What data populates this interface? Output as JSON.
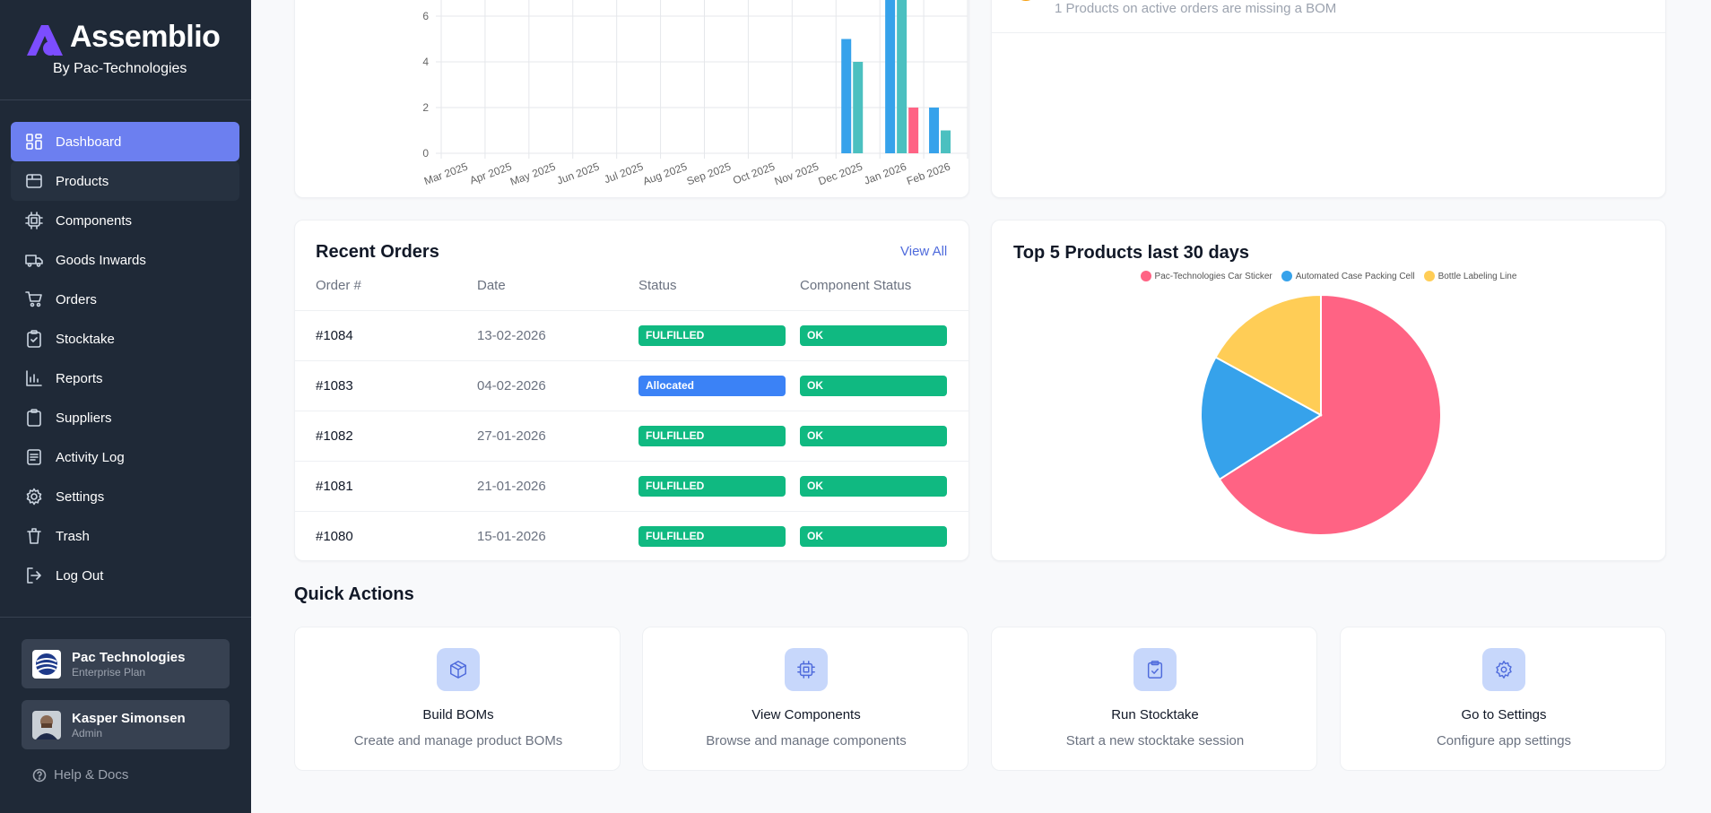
{
  "brand": {
    "name": "Assemblio",
    "tagline": "By Pac-Technologies"
  },
  "nav": [
    {
      "id": "dashboard",
      "label": "Dashboard",
      "icon": "dashboard-icon"
    },
    {
      "id": "products",
      "label": "Products",
      "icon": "box-icon"
    },
    {
      "id": "components",
      "label": "Components",
      "icon": "chip-icon"
    },
    {
      "id": "goods-inwards",
      "label": "Goods Inwards",
      "icon": "truck-icon"
    },
    {
      "id": "orders",
      "label": "Orders",
      "icon": "cart-icon"
    },
    {
      "id": "stocktake",
      "label": "Stocktake",
      "icon": "clipboard-check-icon"
    },
    {
      "id": "reports",
      "label": "Reports",
      "icon": "chart-icon"
    },
    {
      "id": "suppliers",
      "label": "Suppliers",
      "icon": "clipboard-icon"
    },
    {
      "id": "activity-log",
      "label": "Activity Log",
      "icon": "document-icon"
    },
    {
      "id": "settings",
      "label": "Settings",
      "icon": "gear-icon"
    },
    {
      "id": "trash",
      "label": "Trash",
      "icon": "trash-icon"
    },
    {
      "id": "log-out",
      "label": "Log Out",
      "icon": "logout-icon"
    }
  ],
  "organization": {
    "name": "Pac Technologies",
    "plan": "Enterprise Plan"
  },
  "user": {
    "name": "Kasper Simonsen",
    "role": "Admin"
  },
  "help_label": "Help & Docs",
  "alert": {
    "text": "1 Products on active orders are missing a BOM"
  },
  "chart_data": [
    {
      "type": "bar",
      "categories": [
        "Mar 2025",
        "Apr 2025",
        "May 2025",
        "Jun 2025",
        "Jul 2025",
        "Aug 2025",
        "Sep 2025",
        "Oct 2025",
        "Nov 2025",
        "Dec 2025",
        "Jan 2026",
        "Feb 2026"
      ],
      "series": [
        {
          "color": "#36a2eb",
          "values": [
            0,
            0,
            0,
            0,
            0,
            0,
            0,
            0,
            0,
            5,
            7,
            2
          ]
        },
        {
          "color": "#4bc0c0",
          "values": [
            0,
            0,
            0,
            0,
            0,
            0,
            0,
            0,
            0,
            4,
            7,
            1
          ]
        },
        {
          "color": "#ff6384",
          "values": [
            0,
            0,
            0,
            0,
            0,
            0,
            0,
            0,
            0,
            0,
            2,
            0
          ]
        }
      ],
      "y_ticks": [
        "0",
        "2",
        "4",
        "6"
      ],
      "ylim": [
        0,
        6.5
      ],
      "grid": true
    },
    {
      "type": "pie",
      "title": "Top 5 Products last 30 days",
      "legend_position": "top",
      "slices": [
        {
          "label": "Pac-Technologies Car Sticker",
          "value": 66,
          "color": "#ff6384"
        },
        {
          "label": "Automated Case Packing Cell",
          "value": 17,
          "color": "#36a2eb"
        },
        {
          "label": "Bottle Labeling Line",
          "value": 17,
          "color": "#ffcd56"
        }
      ]
    }
  ],
  "recent_orders": {
    "title": "Recent Orders",
    "view_all": "View All",
    "columns": [
      "Order #",
      "Date",
      "Status",
      "Component Status"
    ],
    "rows": [
      {
        "order": "#1084",
        "date": "13-02-2026",
        "status": "FULFILLED",
        "status_color": "#10b981",
        "component_status": "OK"
      },
      {
        "order": "#1083",
        "date": "04-02-2026",
        "status": "Allocated",
        "status_color": "#3b82f6",
        "component_status": "OK"
      },
      {
        "order": "#1082",
        "date": "27-01-2026",
        "status": "FULFILLED",
        "status_color": "#10b981",
        "component_status": "OK"
      },
      {
        "order": "#1081",
        "date": "21-01-2026",
        "status": "FULFILLED",
        "status_color": "#10b981",
        "component_status": "OK"
      },
      {
        "order": "#1080",
        "date": "15-01-2026",
        "status": "FULFILLED",
        "status_color": "#10b981",
        "component_status": "OK"
      }
    ]
  },
  "quick_actions": {
    "title": "Quick Actions",
    "items": [
      {
        "title": "Build BOMs",
        "desc": "Create and manage product BOMs",
        "icon": "cube-icon"
      },
      {
        "title": "View Components",
        "desc": "Browse and manage components",
        "icon": "chip-icon"
      },
      {
        "title": "Run Stocktake",
        "desc": "Start a new stocktake session",
        "icon": "clipboard-check-icon"
      },
      {
        "title": "Go to Settings",
        "desc": "Configure app settings",
        "icon": "gear-icon"
      }
    ]
  },
  "colors": {
    "sidebar": "#1f2937",
    "accent": "#6c7ff0",
    "ok": "#10b981",
    "allocated": "#3b82f6"
  }
}
